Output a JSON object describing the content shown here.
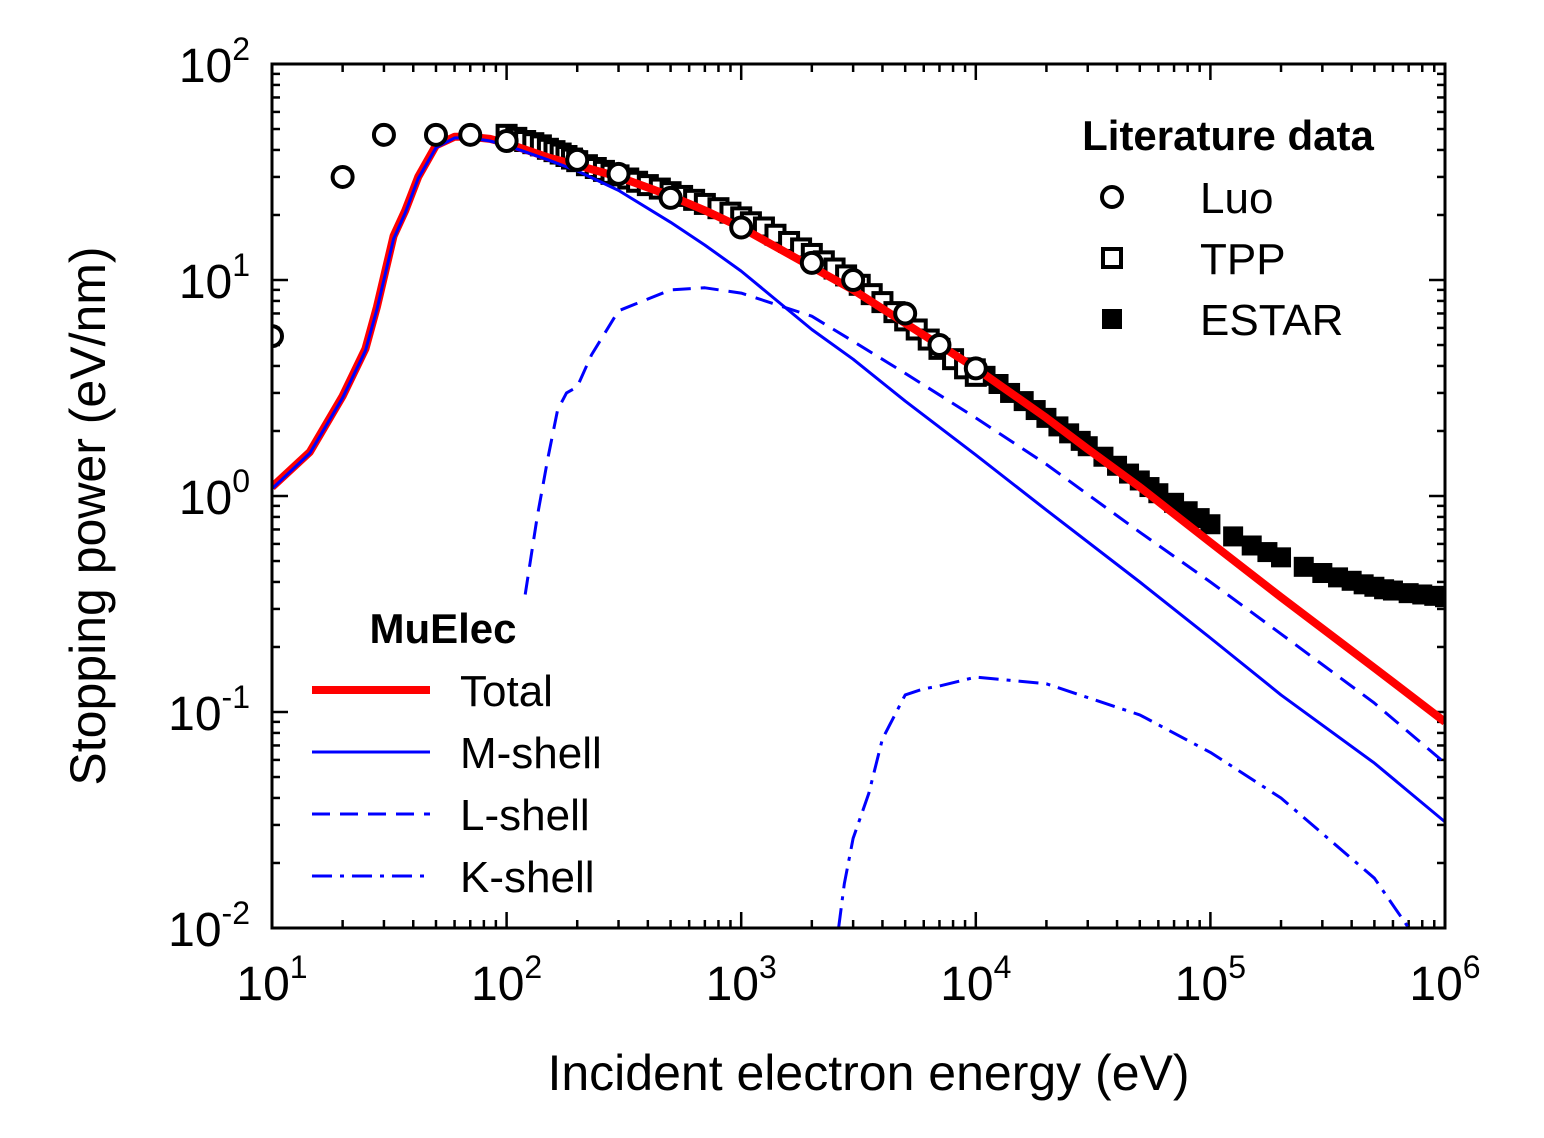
{
  "chart_data": {
    "type": "line",
    "xlabel": "Incident electron energy (eV)",
    "ylabel": "Stopping power (eV/nm)",
    "xscale": "log",
    "yscale": "log",
    "xlim": [
      10,
      1000000
    ],
    "ylim": [
      0.01,
      100
    ],
    "x_ticks": [
      {
        "value": 10,
        "base": "10",
        "exp": "1"
      },
      {
        "value": 100,
        "base": "10",
        "exp": "2"
      },
      {
        "value": 1000,
        "base": "10",
        "exp": "3"
      },
      {
        "value": 10000,
        "base": "10",
        "exp": "4"
      },
      {
        "value": 100000,
        "base": "10",
        "exp": "5"
      },
      {
        "value": 1000000,
        "base": "10",
        "exp": "6"
      }
    ],
    "y_ticks": [
      {
        "value": 0.01,
        "base": "10",
        "exp": "-2"
      },
      {
        "value": 0.1,
        "base": "10",
        "exp": "-1"
      },
      {
        "value": 1,
        "base": "10",
        "exp": "0"
      },
      {
        "value": 10,
        "base": "10",
        "exp": "1"
      },
      {
        "value": 100,
        "base": "10",
        "exp": "2"
      }
    ],
    "grid": false,
    "legends": [
      {
        "title": "Literature data",
        "placement": "top-right",
        "entries": [
          {
            "label": "Luo",
            "marker": "open-circle",
            "ref": "Luo"
          },
          {
            "label": "TPP",
            "marker": "open-square",
            "ref": "TPP"
          },
          {
            "label": "ESTAR",
            "marker": "filled-square",
            "ref": "ESTAR"
          }
        ]
      },
      {
        "title": "MuElec",
        "placement": "bottom-left",
        "entries": [
          {
            "label": "Total",
            "ref": "Total"
          },
          {
            "label": "M-shell",
            "ref": "M-shell"
          },
          {
            "label": "L-shell",
            "ref": "L-shell"
          },
          {
            "label": "K-shell",
            "ref": "K-shell"
          }
        ]
      }
    ],
    "series": [
      {
        "name": "Total",
        "style": "line",
        "color": "#ff0000",
        "dash": "solid",
        "x": [
          10,
          14.5,
          20,
          25,
          28,
          33,
          37,
          42,
          50,
          60,
          70,
          85,
          100,
          150,
          200,
          300,
          500,
          700,
          1000,
          2000,
          3000,
          5000,
          10000,
          20000,
          30000,
          50000,
          100000,
          200000,
          500000,
          1000000
        ],
        "y": [
          1.1,
          1.6,
          2.9,
          4.8,
          7.5,
          16,
          21,
          30,
          42,
          46,
          46,
          45,
          43,
          37,
          34,
          30,
          24.5,
          21,
          17.5,
          11.5,
          9,
          6.3,
          3.9,
          2.3,
          1.65,
          1.1,
          0.61,
          0.34,
          0.16,
          0.09
        ]
      },
      {
        "name": "M-shell",
        "style": "line",
        "color": "#0000ff",
        "dash": "solid",
        "x": [
          10,
          14.5,
          20,
          25,
          28,
          33,
          37,
          42,
          50,
          60,
          70,
          85,
          100,
          150,
          200,
          300,
          500,
          700,
          1000,
          2000,
          3000,
          5000,
          10000,
          20000,
          50000,
          100000,
          200000,
          500000,
          1000000
        ],
        "y": [
          1.08,
          1.58,
          2.85,
          4.7,
          7.3,
          15.5,
          20.5,
          29.5,
          41,
          45.5,
          45.5,
          44,
          42,
          36,
          32,
          26,
          18.5,
          14.5,
          11,
          5.9,
          4.3,
          2.75,
          1.55,
          0.86,
          0.4,
          0.22,
          0.12,
          0.058,
          0.031
        ]
      },
      {
        "name": "L-shell",
        "style": "line",
        "color": "#0000ff",
        "dash": "dashed",
        "x": [
          120,
          135,
          150,
          165,
          180,
          200,
          230,
          300,
          500,
          700,
          1000,
          2000,
          3000,
          5000,
          10000,
          20000,
          50000,
          100000,
          200000,
          500000,
          1000000
        ],
        "y": [
          0.35,
          0.8,
          1.5,
          2.5,
          3,
          3.2,
          4.5,
          7.2,
          9,
          9.2,
          8.7,
          6.8,
          5.2,
          3.7,
          2.3,
          1.4,
          0.68,
          0.4,
          0.23,
          0.11,
          0.058
        ]
      },
      {
        "name": "K-shell",
        "style": "line",
        "color": "#0000ff",
        "dash": "dashdot",
        "x": [
          2600,
          2750,
          3000,
          3500,
          4000,
          5000,
          6000,
          7000,
          10000,
          20000,
          50000,
          100000,
          200000,
          500000,
          700000
        ],
        "y": [
          0.01,
          0.016,
          0.026,
          0.042,
          0.075,
          0.12,
          0.128,
          0.132,
          0.145,
          0.135,
          0.097,
          0.065,
          0.04,
          0.017,
          0.01
        ]
      },
      {
        "name": "Luo",
        "style": "markers",
        "marker": "open-circle",
        "x": [
          10,
          20,
          30,
          50,
          70,
          100,
          200,
          300,
          500,
          1000,
          2000,
          3000,
          5000,
          7000,
          10000
        ],
        "y": [
          5.5,
          30,
          47,
          47,
          47,
          44,
          36,
          31,
          24,
          17.5,
          12,
          10,
          7,
          5,
          3.9
        ]
      },
      {
        "name": "TPP",
        "style": "markers",
        "marker": "open-square",
        "x": [
          100,
          110,
          120,
          130,
          140,
          150,
          160,
          170,
          180,
          190,
          200,
          220,
          240,
          260,
          280,
          300,
          330,
          360,
          400,
          450,
          500,
          560,
          630,
          700,
          800,
          900,
          1000,
          1100,
          1250,
          1400,
          1600,
          1800,
          2000,
          2250,
          2500,
          2800,
          3200,
          3600,
          4000,
          4500,
          5000,
          5600,
          6300,
          7000,
          8000,
          9000,
          10000
        ],
        "y": [
          47,
          45.5,
          44,
          43,
          42,
          40.5,
          39.5,
          38.5,
          37.5,
          36.5,
          35.5,
          34,
          33,
          32,
          31,
          30.5,
          29.5,
          28.5,
          27.5,
          26.5,
          25.5,
          24.5,
          23.5,
          22.5,
          21.5,
          20.5,
          19.5,
          18.5,
          17.5,
          16.2,
          15,
          14,
          13.2,
          12.2,
          11.3,
          10.5,
          9.5,
          8.6,
          7.9,
          7.1,
          6.5,
          5.9,
          5.3,
          4.8,
          4.3,
          3.9,
          3.6
        ]
      },
      {
        "name": "ESTAR",
        "style": "markers",
        "marker": "filled-square",
        "x": [
          10000,
          11000,
          12500,
          14000,
          16000,
          18000,
          20000,
          22500,
          25000,
          28000,
          30000,
          35000,
          40000,
          45000,
          50000,
          55000,
          60000,
          70000,
          80000,
          90000,
          100000,
          125000,
          150000,
          175000,
          200000,
          250000,
          300000,
          350000,
          400000,
          450000,
          500000,
          550000,
          600000,
          700000,
          800000,
          900000,
          1000000
        ],
        "y": [
          3.9,
          3.6,
          3.3,
          3.0,
          2.75,
          2.5,
          2.3,
          2.1,
          1.95,
          1.8,
          1.7,
          1.52,
          1.38,
          1.27,
          1.18,
          1.1,
          1.03,
          0.93,
          0.85,
          0.79,
          0.74,
          0.65,
          0.59,
          0.55,
          0.52,
          0.47,
          0.44,
          0.42,
          0.405,
          0.39,
          0.38,
          0.37,
          0.365,
          0.355,
          0.35,
          0.345,
          0.34
        ]
      }
    ]
  }
}
